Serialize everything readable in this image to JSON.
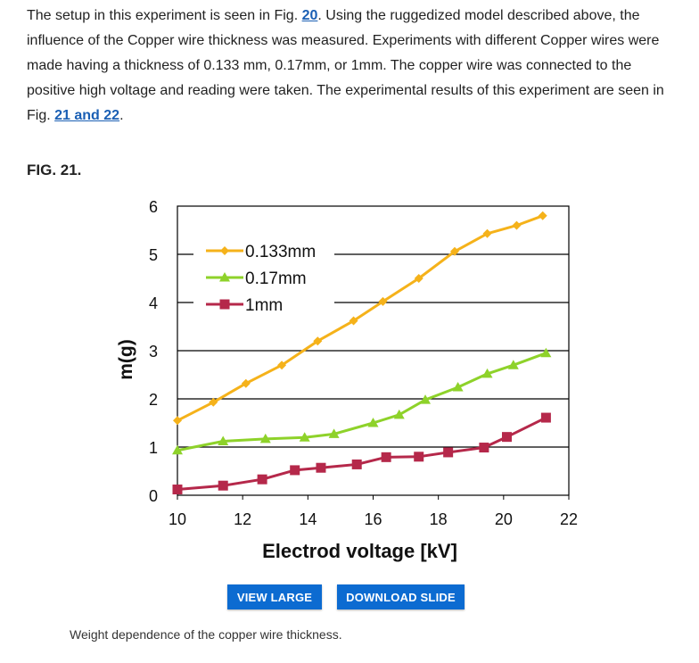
{
  "article": {
    "p1": "The setup in this experiment is seen in Fig. ",
    "link1": "20",
    "p2": ". Using the ruggedized model described above, the influence of the Copper wire thickness was measured. Experiments with different Copper wires were made having a thickness of 0.133 mm, 0.17mm, or 1mm. The copper wire was connected to the positive high voltage and reading were taken. The experimental results of this experiment are seen in Fig. ",
    "link2": "21 and 22",
    "p3": "."
  },
  "figure": {
    "label": "FIG. 21.",
    "caption": "Weight dependence of the copper wire thickness.",
    "buttons": {
      "view_large": "VIEW LARGE",
      "download_slide": "DOWNLOAD SLIDE"
    }
  },
  "chart_data": {
    "type": "line",
    "xlabel": "Electrod voltage [kV]",
    "ylabel": "m(g)",
    "xlim": [
      10,
      22
    ],
    "ylim": [
      0,
      6
    ],
    "xticks": [
      "10",
      "12",
      "14",
      "16",
      "18",
      "20",
      "22"
    ],
    "yticks": [
      "0",
      "1",
      "2",
      "3",
      "4",
      "5",
      "6"
    ],
    "grid": "horizontal",
    "legend": "top-left",
    "series": [
      {
        "name": "0.133mm",
        "color": "#f5b21a",
        "marker": "diamond",
        "x": [
          10.0,
          11.1,
          12.1,
          13.2,
          14.3,
          15.4,
          16.3,
          17.4,
          18.5,
          19.5,
          20.4,
          21.2
        ],
        "y": [
          1.55,
          1.93,
          2.32,
          2.7,
          3.2,
          3.62,
          4.02,
          4.5,
          5.06,
          5.43,
          5.6,
          5.8
        ]
      },
      {
        "name": "0.17mm",
        "color": "#8ed22a",
        "marker": "triangle",
        "x": [
          10.0,
          11.4,
          12.7,
          13.9,
          14.8,
          16.0,
          16.8,
          17.6,
          18.6,
          19.5,
          20.3,
          21.3
        ],
        "y": [
          0.93,
          1.12,
          1.17,
          1.2,
          1.27,
          1.5,
          1.67,
          1.98,
          2.24,
          2.52,
          2.7,
          2.95
        ]
      },
      {
        "name": "1mm",
        "color": "#b5284a",
        "marker": "square",
        "x": [
          10.0,
          11.4,
          12.6,
          13.6,
          14.4,
          15.5,
          16.4,
          17.4,
          18.3,
          19.4,
          20.1,
          21.3
        ],
        "y": [
          0.12,
          0.2,
          0.33,
          0.52,
          0.57,
          0.64,
          0.79,
          0.8,
          0.89,
          0.99,
          1.21,
          1.61
        ]
      }
    ]
  }
}
